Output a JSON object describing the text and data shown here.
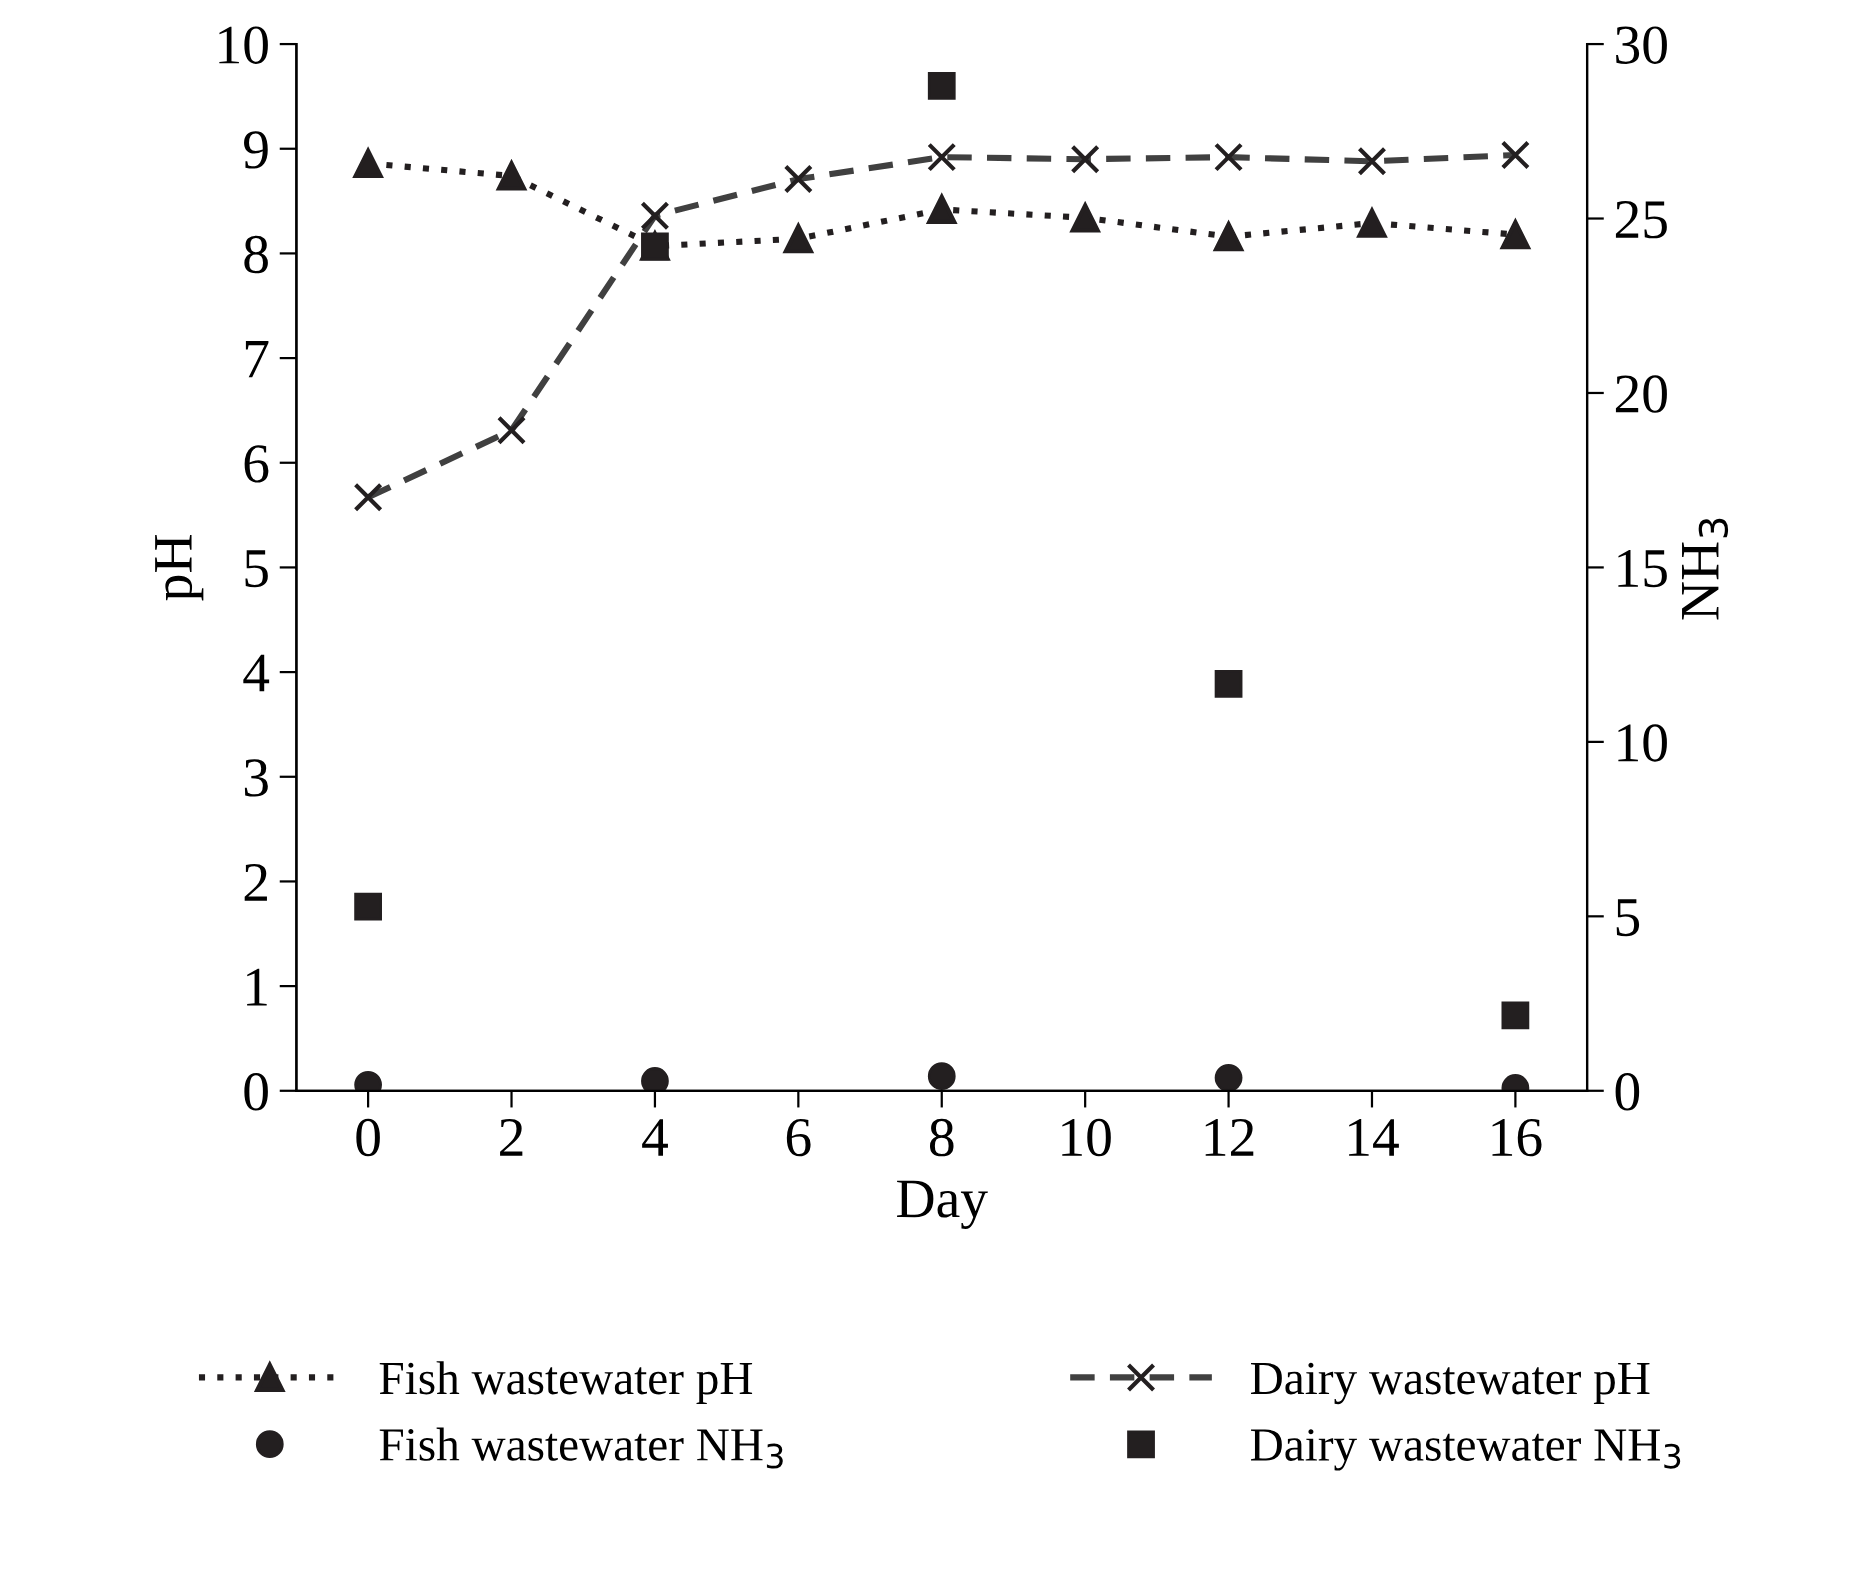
{
  "chart_data": {
    "type": "line",
    "xlabel": "Day",
    "ylabel": "pH",
    "y2label": "NH$_{3}$",
    "x": [
      0,
      2,
      4,
      6,
      8,
      10,
      12,
      14,
      16
    ],
    "series": [
      {
        "name": "Fish wastewater pH",
        "color": "#231f20",
        "marker": "triangle",
        "line_style": "dotted",
        "values": [
          8.86,
          8.74,
          8.07,
          8.14,
          8.42,
          8.34,
          8.16,
          8.29,
          8.18
        ]
      },
      {
        "name": "Fish wastewater NH$_{3}$",
        "type": "scatter",
        "axis": "y2",
        "color": "#231f20",
        "marker": "circle",
        "values": [
          0.17,
          null,
          0.28,
          null,
          0.42,
          null,
          0.37,
          null,
          0.08
        ]
      },
      {
        "name": "Dairy wastewater pH",
        "color": "#404040",
        "marker": "cross",
        "line_style": "dashed",
        "values": [
          5.67,
          6.31,
          8.36,
          8.71,
          8.92,
          8.9,
          8.92,
          8.88,
          8.94
        ]
      },
      {
        "name": "Dairy wastewater NH$_{3}$",
        "type": "scatter",
        "axis": "y2",
        "color": "#231f20",
        "marker": "square",
        "values": [
          5.28,
          null,
          24.2,
          null,
          28.8,
          null,
          11.66,
          null,
          2.16
        ]
      }
    ],
    "xlim": [
      -1,
      17
    ],
    "xticks": [
      0,
      2,
      4,
      6,
      8,
      10,
      12,
      14,
      16
    ],
    "ylim": [
      0,
      10
    ],
    "yticks": [
      0,
      1,
      2,
      3,
      4,
      5,
      6,
      7,
      8,
      9,
      10
    ],
    "y2lim": [
      0,
      30
    ],
    "y2ticks": [
      0,
      5,
      10,
      15,
      20,
      25,
      30
    ],
    "grid": false,
    "legend": "bottom"
  }
}
